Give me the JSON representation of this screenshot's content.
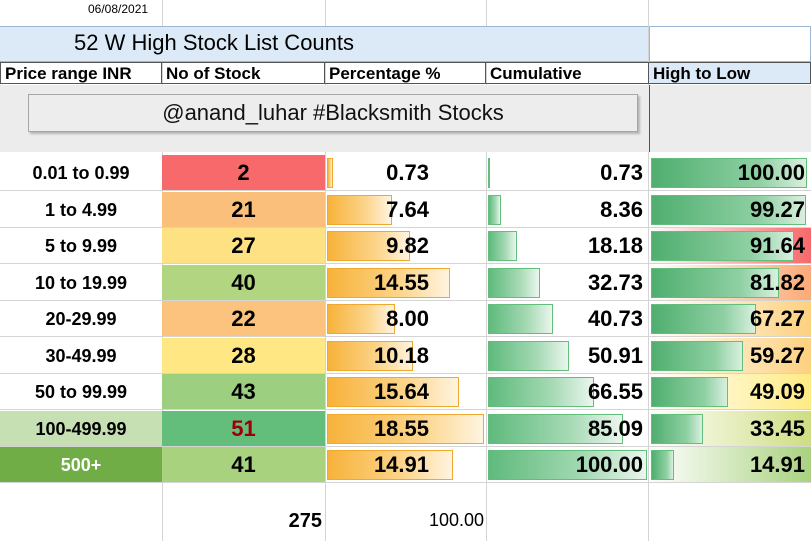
{
  "date_cell": "06/08/2021",
  "title": "52 W High Stock List Counts",
  "headers": {
    "price_range": "Price range INR",
    "no_of_stock": "No of Stock",
    "percentage": "Percentage %",
    "cumulative": "Cumulative",
    "high_to_low": "High to Low"
  },
  "watermark": "@anand_luhar #Blacksmith Stocks",
  "rows": [
    {
      "range": "0.01 to 0.99",
      "count": "2",
      "pct": "0.73",
      "cum": "0.73",
      "hl": "100.00",
      "count_color": "#f8696b",
      "range_bg": "#ffffff",
      "range_color": "#000000",
      "count_text_color": "#000000",
      "hl_color": "#63be7b"
    },
    {
      "range": "1 to 4.99",
      "count": "21",
      "pct": "7.64",
      "cum": "8.36",
      "hl": "99.27",
      "count_color": "#fbbf7c",
      "range_bg": "#ffffff",
      "range_color": "#000000",
      "count_text_color": "#000000",
      "hl_color": "#63be7b"
    },
    {
      "range": "5 to 9.99",
      "count": "27",
      "pct": "9.82",
      "cum": "18.18",
      "hl": "91.64",
      "count_color": "#fee182",
      "range_bg": "#ffffff",
      "range_color": "#000000",
      "count_text_color": "#000000",
      "hl_color": "#63be7b"
    },
    {
      "range": "10 to 19.99",
      "count": "40",
      "pct": "14.55",
      "cum": "32.73",
      "hl": "81.82",
      "count_color": "#b1d580",
      "range_bg": "#ffffff",
      "range_color": "#000000",
      "count_text_color": "#000000",
      "hl_color": "#63be7b"
    },
    {
      "range": "20-29.99",
      "count": "22",
      "pct": "8.00",
      "cum": "40.73",
      "hl": "67.27",
      "count_color": "#fbc37d",
      "range_bg": "#ffffff",
      "range_color": "#000000",
      "count_text_color": "#000000",
      "hl_color": "#63be7b"
    },
    {
      "range": "30-49.99",
      "count": "28",
      "pct": "10.18",
      "cum": "50.91",
      "hl": "59.27",
      "count_color": "#ffe783",
      "range_bg": "#ffffff",
      "range_color": "#000000",
      "count_text_color": "#000000",
      "hl_color": "#63be7b"
    },
    {
      "range": "50 to 99.99",
      "count": "43",
      "pct": "15.64",
      "cum": "66.55",
      "hl": "49.09",
      "count_color": "#9ccf7f",
      "range_bg": "#ffffff",
      "range_color": "#000000",
      "count_text_color": "#000000",
      "hl_color": "#63be7b"
    },
    {
      "range": "100-499.99",
      "count": "51",
      "pct": "18.55",
      "cum": "85.09",
      "hl": "33.45",
      "count_color": "#63be7b",
      "range_bg": "#c6e0b4",
      "range_color": "#000000",
      "count_text_color": "#9c0006",
      "hl_color": "#63be7b"
    },
    {
      "range": "500+",
      "count": "41",
      "pct": "14.91",
      "cum": "100.00",
      "hl": "14.91",
      "count_color": "#a9d27f",
      "range_bg": "#70ad47",
      "range_color": "#ffffff",
      "count_text_color": "#000000",
      "hl_color": "#63be7b"
    }
  ],
  "totals": {
    "count": "275",
    "pct": "100.00"
  },
  "colors": {
    "title_band": "#dceaf7",
    "orange_bar": "#f7b23a",
    "green_bar": "#63be7b",
    "red_scale": "#f8696b",
    "yellow_scale": "#ffeb84"
  }
}
